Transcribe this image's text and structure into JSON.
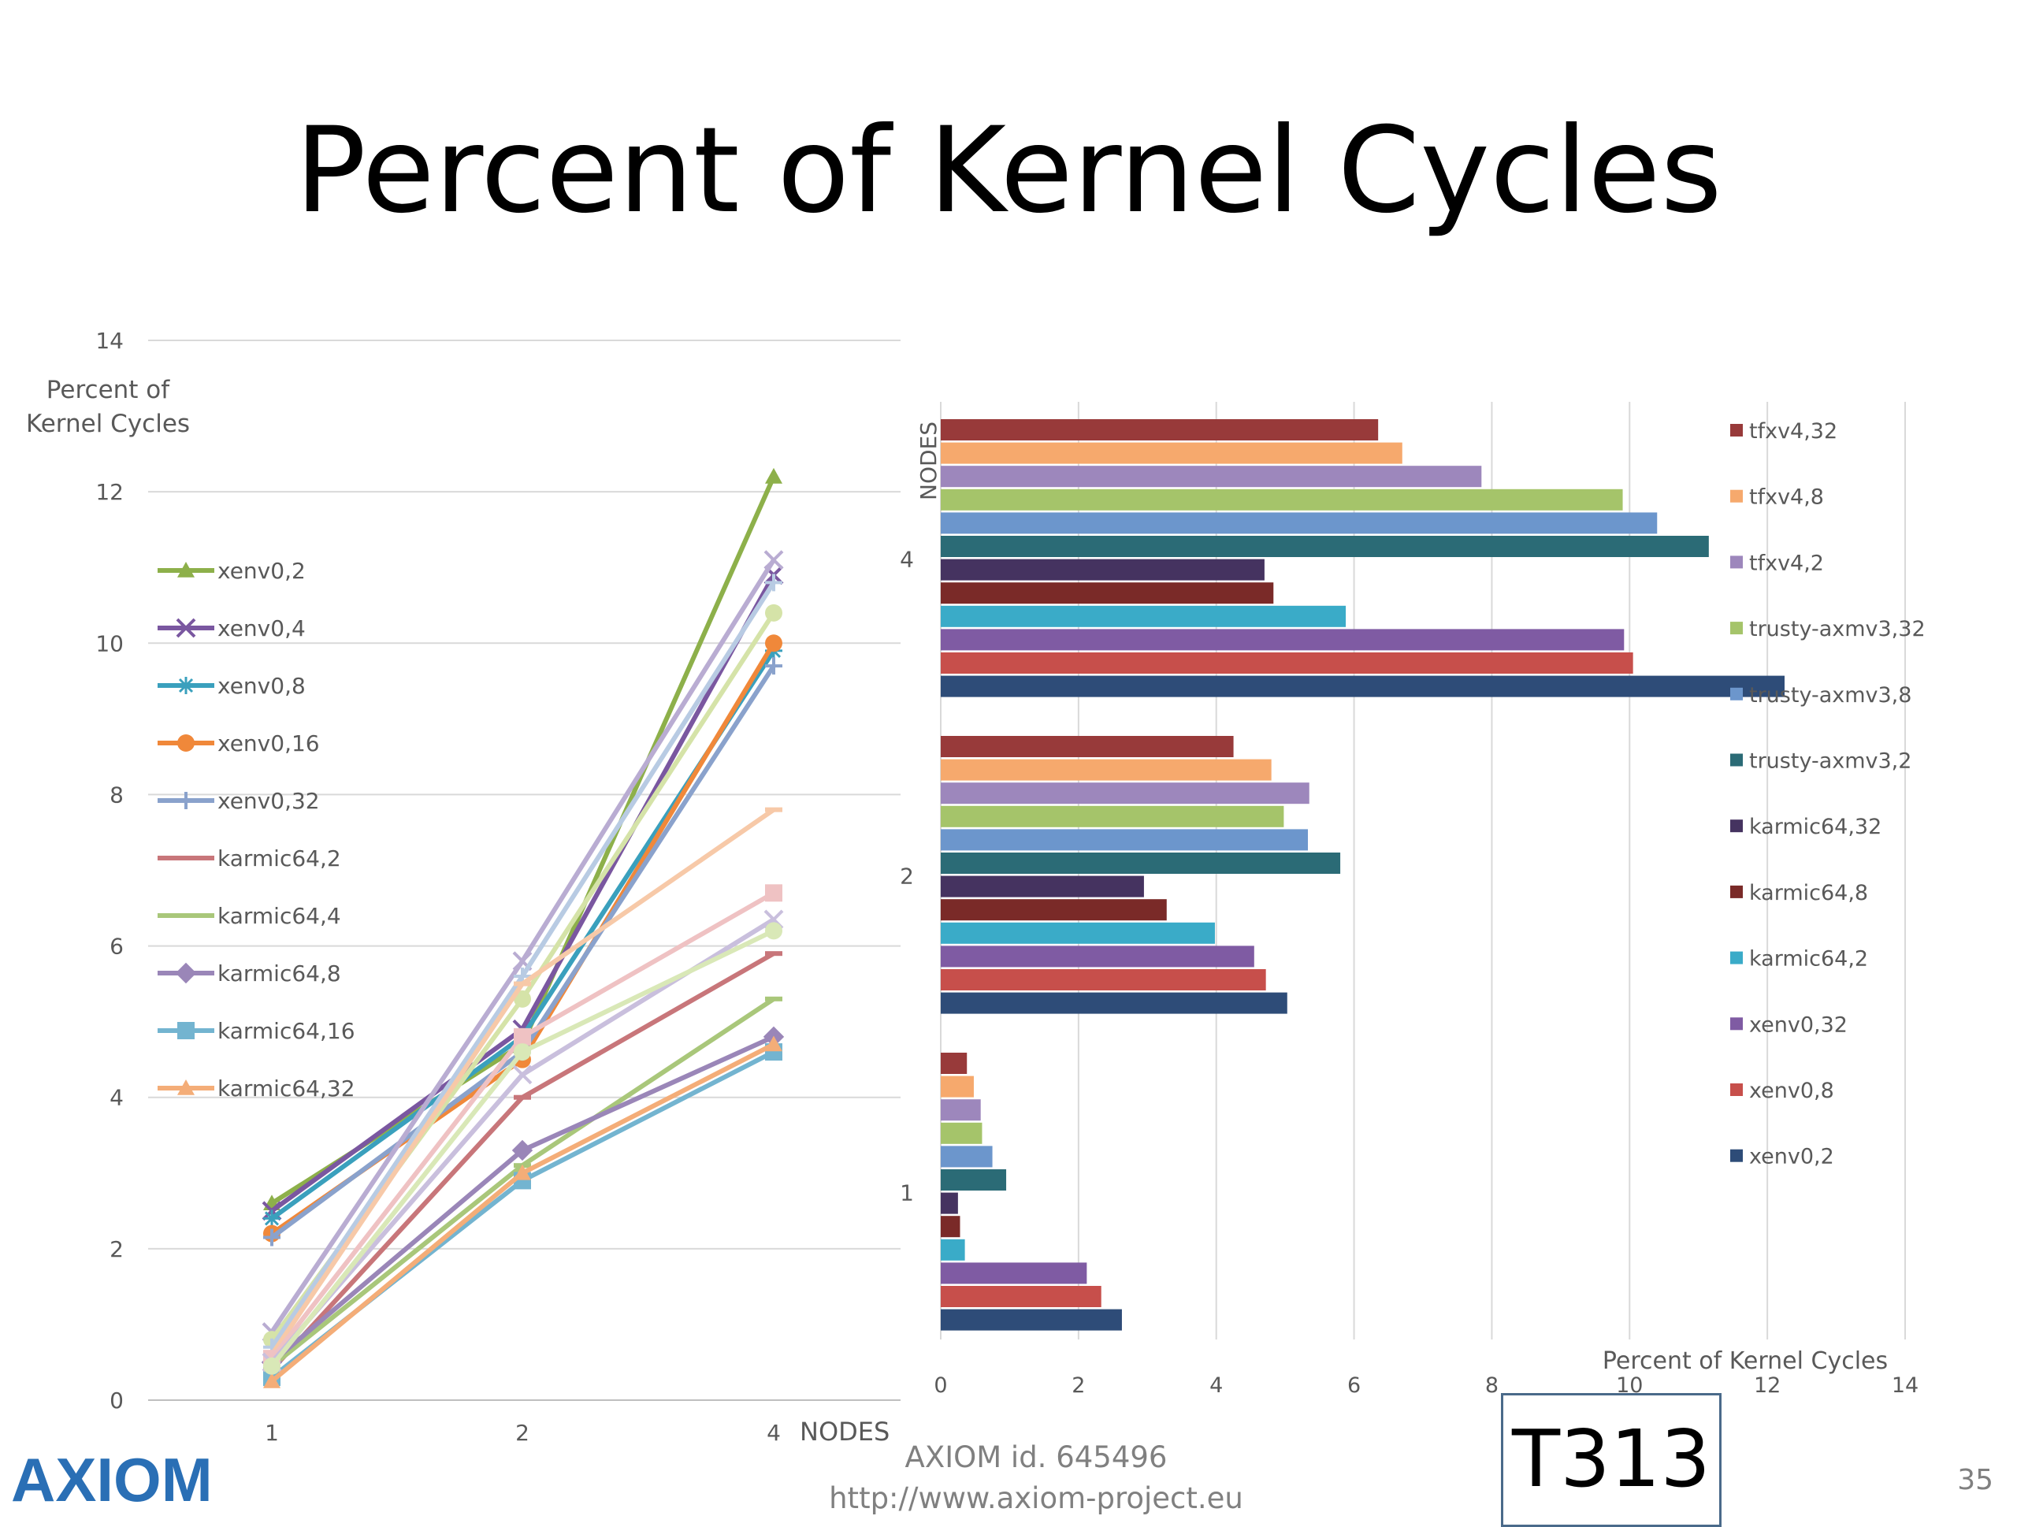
{
  "slide": {
    "title": "Percent of Kernel Cycles",
    "footer_id": "AXIOM id. 645496",
    "footer_url": "http://www.axiom-project.eu",
    "badge": "T313",
    "page_number": "35",
    "logo_text": "AXIOM"
  },
  "chart_data": [
    {
      "type": "line",
      "ylabel": "Percent of Kernel Cycles",
      "xlabel": "NODES",
      "categories": [
        "1",
        "2",
        "4"
      ],
      "ylim": [
        0,
        14
      ],
      "yticks": [
        0,
        2,
        4,
        6,
        8,
        10,
        12,
        14
      ],
      "grid": true,
      "legend_position": "left",
      "legend": [
        "xenv0,2",
        "xenv0,4",
        "xenv0,8",
        "xenv0,16",
        "xenv0,32",
        "karmic64,2",
        "karmic64,4",
        "karmic64,8",
        "karmic64,16",
        "karmic64,32"
      ],
      "series": [
        {
          "name": "xenv0,2",
          "color": "#8db04a",
          "marker": "triangle",
          "values": [
            2.6,
            4.7,
            12.2
          ]
        },
        {
          "name": "xenv0,4",
          "color": "#7a57a0",
          "marker": "x",
          "values": [
            2.5,
            4.9,
            10.9
          ]
        },
        {
          "name": "xenv0,8",
          "color": "#3aa0bd",
          "marker": "star",
          "values": [
            2.4,
            4.8,
            9.9
          ]
        },
        {
          "name": "xenv0,16",
          "color": "#f0883a",
          "marker": "circle",
          "values": [
            2.2,
            4.5,
            10.0
          ]
        },
        {
          "name": "xenv0,32",
          "color": "#8aa2cc",
          "marker": "plus",
          "values": [
            2.15,
            4.6,
            9.7
          ]
        },
        {
          "name": "karmic64,2",
          "color": "#c8767a",
          "marker": "dash",
          "values": [
            0.4,
            4.0,
            5.9
          ]
        },
        {
          "name": "karmic64,4",
          "color": "#a9c77a",
          "marker": "dash",
          "values": [
            0.45,
            3.1,
            5.3
          ]
        },
        {
          "name": "karmic64,8",
          "color": "#9a86b8",
          "marker": "diamond",
          "values": [
            0.5,
            3.3,
            4.8
          ]
        },
        {
          "name": "karmic64,16",
          "color": "#73b4d0",
          "marker": "square",
          "values": [
            0.3,
            2.9,
            4.6
          ]
        },
        {
          "name": "karmic64,32",
          "color": "#f4ad78",
          "marker": "triangle",
          "values": [
            0.25,
            3.0,
            4.7
          ]
        },
        {
          "name": "",
          "color": "#b9acd2",
          "marker": "x",
          "values": [
            0.9,
            5.8,
            11.1
          ]
        },
        {
          "name": "",
          "color": "#d5e3a8",
          "marker": "circle",
          "values": [
            0.8,
            5.3,
            10.4
          ]
        },
        {
          "name": "",
          "color": "#b8cbe3",
          "marker": "plus",
          "values": [
            0.7,
            5.6,
            10.8
          ]
        },
        {
          "name": "",
          "color": "#f7c9a8",
          "marker": "dash",
          "values": [
            0.6,
            5.5,
            7.8
          ]
        },
        {
          "name": "",
          "color": "#efc2c3",
          "marker": "square",
          "values": [
            0.55,
            4.8,
            6.7
          ]
        },
        {
          "name": "",
          "color": "#c9bfdd",
          "marker": "x",
          "values": [
            0.5,
            4.3,
            6.35
          ]
        },
        {
          "name": "",
          "color": "#d9e8b7",
          "marker": "circle",
          "values": [
            0.45,
            4.6,
            6.2
          ]
        }
      ]
    },
    {
      "type": "bar",
      "orientation": "horizontal",
      "ylabel": "NODES",
      "xlabel": "Percent of Kernel Cycles",
      "categories": [
        "4",
        "2",
        "1"
      ],
      "xlim": [
        0,
        14
      ],
      "xticks": [
        0,
        2,
        4,
        6,
        8,
        10,
        12,
        14
      ],
      "grid": true,
      "legend_position": "right",
      "series": [
        {
          "name": "tfxv4,32",
          "color": "#983a3a",
          "values": [
            6.35,
            4.25,
            0.38
          ]
        },
        {
          "name": "tfxv4,8",
          "color": "#f6a96d",
          "values": [
            6.7,
            4.8,
            0.48
          ]
        },
        {
          "name": "tfxv4,2",
          "color": "#9d87bc",
          "values": [
            7.85,
            5.35,
            0.58
          ]
        },
        {
          "name": "trusty-axmv3,32",
          "color": "#a5c46a",
          "values": [
            9.9,
            4.98,
            0.6
          ]
        },
        {
          "name": "trusty-axmv3,8",
          "color": "#6c96cc",
          "values": [
            10.4,
            5.33,
            0.75
          ]
        },
        {
          "name": "trusty-axmv3,2",
          "color": "#2b6b76",
          "values": [
            11.15,
            5.8,
            0.95
          ]
        },
        {
          "name": "karmic64,32",
          "color": "#453360",
          "values": [
            4.7,
            2.95,
            0.25
          ]
        },
        {
          "name": "karmic64,8",
          "color": "#7a2a28",
          "values": [
            4.83,
            3.28,
            0.28
          ]
        },
        {
          "name": "karmic64,2",
          "color": "#3aabc8",
          "values": [
            5.88,
            3.98,
            0.35
          ]
        },
        {
          "name": "xenv0,32",
          "color": "#7f5ba3",
          "values": [
            9.92,
            4.55,
            2.12
          ]
        },
        {
          "name": "xenv0,8",
          "color": "#c74f4b",
          "values": [
            10.05,
            4.72,
            2.33
          ]
        },
        {
          "name": "xenv0,2",
          "color": "#2e4c78",
          "values": [
            12.25,
            5.03,
            2.63
          ]
        }
      ]
    }
  ]
}
